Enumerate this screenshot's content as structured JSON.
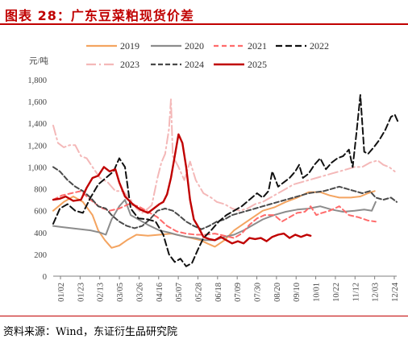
{
  "title": "图表 28：广东豆菜粕现货价差",
  "source": "资料来源：Wind，东证衍生品研究院",
  "chart_data": {
    "type": "line",
    "ylabel": "元/吨",
    "ylim": [
      0,
      1800
    ],
    "yticks": [
      "0",
      "200",
      "400",
      "600",
      "800",
      "1,000",
      "1,200",
      "1,400",
      "1,600",
      "1,800"
    ],
    "xticks": [
      "01/02",
      "01/23",
      "02/13",
      "03/05",
      "03/26",
      "04/16",
      "05/07",
      "05/28",
      "06/18",
      "07/09",
      "07/30",
      "08/20",
      "09/10",
      "10/01",
      "10/22",
      "11/12",
      "12/03",
      "12/24"
    ],
    "x_domain": [
      1,
      360
    ],
    "legend_position": "top",
    "series": [
      {
        "name": "2019",
        "color": "#f4a460",
        "dash": "solid",
        "points": [
          [
            1,
            600
          ],
          [
            12,
            680
          ],
          [
            22,
            730
          ],
          [
            32,
            680
          ],
          [
            42,
            560
          ],
          [
            48,
            420
          ],
          [
            55,
            330
          ],
          [
            62,
            260
          ],
          [
            70,
            280
          ],
          [
            78,
            330
          ],
          [
            88,
            380
          ],
          [
            100,
            370
          ],
          [
            112,
            380
          ],
          [
            125,
            390
          ],
          [
            140,
            360
          ],
          [
            155,
            330
          ],
          [
            162,
            300
          ],
          [
            170,
            270
          ],
          [
            180,
            330
          ],
          [
            190,
            420
          ],
          [
            200,
            480
          ],
          [
            210,
            540
          ],
          [
            220,
            600
          ],
          [
            232,
            630
          ],
          [
            244,
            680
          ],
          [
            256,
            720
          ],
          [
            268,
            770
          ],
          [
            280,
            770
          ],
          [
            290,
            740
          ],
          [
            300,
            720
          ],
          [
            312,
            720
          ],
          [
            322,
            730
          ],
          [
            330,
            760
          ],
          [
            337,
            780
          ]
        ]
      },
      {
        "name": "2020",
        "color": "#8c8c8c",
        "dash": "solid",
        "points": [
          [
            1,
            460
          ],
          [
            10,
            450
          ],
          [
            20,
            440
          ],
          [
            30,
            430
          ],
          [
            40,
            420
          ],
          [
            50,
            400
          ],
          [
            56,
            380
          ],
          [
            62,
            520
          ],
          [
            70,
            640
          ],
          [
            76,
            700
          ],
          [
            82,
            560
          ],
          [
            90,
            520
          ],
          [
            100,
            470
          ],
          [
            112,
            420
          ],
          [
            122,
            400
          ],
          [
            130,
            380
          ],
          [
            140,
            360
          ],
          [
            150,
            350
          ],
          [
            160,
            330
          ],
          [
            170,
            330
          ],
          [
            180,
            360
          ],
          [
            190,
            380
          ],
          [
            200,
            420
          ],
          [
            210,
            470
          ],
          [
            220,
            520
          ],
          [
            232,
            560
          ],
          [
            244,
            590
          ],
          [
            256,
            610
          ],
          [
            268,
            620
          ],
          [
            280,
            640
          ],
          [
            292,
            610
          ],
          [
            304,
            590
          ],
          [
            316,
            600
          ],
          [
            326,
            610
          ],
          [
            334,
            600
          ],
          [
            338,
            680
          ]
        ]
      },
      {
        "name": "2021",
        "color": "#ff6b6b",
        "dash": "6,4",
        "points": [
          [
            1,
            700
          ],
          [
            10,
            740
          ],
          [
            20,
            760
          ],
          [
            30,
            780
          ],
          [
            40,
            700
          ],
          [
            50,
            630
          ],
          [
            60,
            600
          ],
          [
            70,
            620
          ],
          [
            80,
            660
          ],
          [
            90,
            640
          ],
          [
            100,
            590
          ],
          [
            110,
            540
          ],
          [
            120,
            460
          ],
          [
            130,
            410
          ],
          [
            140,
            390
          ],
          [
            150,
            380
          ],
          [
            160,
            380
          ],
          [
            170,
            390
          ],
          [
            180,
            370
          ],
          [
            190,
            350
          ],
          [
            198,
            390
          ],
          [
            206,
            470
          ],
          [
            214,
            530
          ],
          [
            222,
            560
          ],
          [
            232,
            560
          ],
          [
            240,
            500
          ],
          [
            248,
            540
          ],
          [
            256,
            580
          ],
          [
            264,
            590
          ],
          [
            270,
            640
          ],
          [
            276,
            560
          ],
          [
            282,
            580
          ],
          [
            290,
            600
          ],
          [
            300,
            640
          ],
          [
            310,
            560
          ],
          [
            320,
            540
          ],
          [
            330,
            510
          ],
          [
            338,
            500
          ]
        ]
      },
      {
        "name": "2022",
        "color": "#111111",
        "dash": "8,4",
        "points": [
          [
            1,
            480
          ],
          [
            8,
            620
          ],
          [
            16,
            660
          ],
          [
            24,
            600
          ],
          [
            32,
            580
          ],
          [
            40,
            720
          ],
          [
            48,
            840
          ],
          [
            56,
            900
          ],
          [
            64,
            960
          ],
          [
            70,
            1080
          ],
          [
            76,
            1000
          ],
          [
            82,
            620
          ],
          [
            90,
            530
          ],
          [
            100,
            520
          ],
          [
            108,
            500
          ],
          [
            116,
            380
          ],
          [
            122,
            200
          ],
          [
            128,
            130
          ],
          [
            134,
            160
          ],
          [
            140,
            90
          ],
          [
            146,
            120
          ],
          [
            152,
            240
          ],
          [
            158,
            350
          ],
          [
            166,
            420
          ],
          [
            174,
            500
          ],
          [
            182,
            560
          ],
          [
            190,
            600
          ],
          [
            198,
            640
          ],
          [
            206,
            700
          ],
          [
            214,
            760
          ],
          [
            220,
            720
          ],
          [
            226,
            780
          ],
          [
            230,
            960
          ],
          [
            236,
            820
          ],
          [
            242,
            860
          ],
          [
            248,
            900
          ],
          [
            254,
            960
          ],
          [
            258,
            1020
          ],
          [
            262,
            900
          ],
          [
            268,
            940
          ],
          [
            274,
            1020
          ],
          [
            280,
            1080
          ],
          [
            286,
            980
          ],
          [
            292,
            1040
          ],
          [
            298,
            1080
          ],
          [
            304,
            1100
          ],
          [
            310,
            1160
          ],
          [
            314,
            1000
          ],
          [
            318,
            1320
          ],
          [
            322,
            1660
          ],
          [
            326,
            1140
          ],
          [
            330,
            1120
          ],
          [
            336,
            1180
          ],
          [
            342,
            1250
          ],
          [
            348,
            1340
          ],
          [
            354,
            1460
          ],
          [
            358,
            1480
          ],
          [
            362,
            1400
          ]
        ]
      },
      {
        "name": "2023",
        "color": "#f4b8b8",
        "dash": "12,4,2,4",
        "points": [
          [
            1,
            1380
          ],
          [
            6,
            1220
          ],
          [
            12,
            1180
          ],
          [
            18,
            1200
          ],
          [
            24,
            1200
          ],
          [
            30,
            1100
          ],
          [
            36,
            1080
          ],
          [
            42,
            1000
          ],
          [
            50,
            900
          ],
          [
            58,
            860
          ],
          [
            66,
            780
          ],
          [
            74,
            780
          ],
          [
            82,
            700
          ],
          [
            88,
            620
          ],
          [
            94,
            580
          ],
          [
            100,
            620
          ],
          [
            104,
            650
          ],
          [
            110,
            900
          ],
          [
            114,
            1040
          ],
          [
            118,
            1120
          ],
          [
            122,
            1350
          ],
          [
            124,
            1620
          ],
          [
            126,
            1100
          ],
          [
            132,
            1000
          ],
          [
            138,
            880
          ],
          [
            144,
            1050
          ],
          [
            150,
            880
          ],
          [
            158,
            760
          ],
          [
            166,
            720
          ],
          [
            172,
            680
          ],
          [
            180,
            660
          ],
          [
            188,
            620
          ],
          [
            196,
            600
          ],
          [
            204,
            620
          ],
          [
            212,
            660
          ],
          [
            220,
            680
          ],
          [
            228,
            720
          ],
          [
            236,
            760
          ],
          [
            244,
            800
          ],
          [
            252,
            840
          ],
          [
            260,
            860
          ],
          [
            268,
            880
          ],
          [
            276,
            900
          ],
          [
            284,
            920
          ],
          [
            292,
            940
          ],
          [
            300,
            960
          ],
          [
            308,
            980
          ],
          [
            316,
            1000
          ],
          [
            324,
            1000
          ],
          [
            332,
            1040
          ],
          [
            340,
            1060
          ],
          [
            346,
            1020
          ],
          [
            352,
            1000
          ],
          [
            358,
            960
          ]
        ]
      },
      {
        "name": "2024",
        "color": "#4a4a4a",
        "dash": "6,3",
        "points": [
          [
            1,
            1000
          ],
          [
            8,
            960
          ],
          [
            16,
            880
          ],
          [
            24,
            820
          ],
          [
            32,
            780
          ],
          [
            40,
            720
          ],
          [
            48,
            640
          ],
          [
            56,
            620
          ],
          [
            62,
            560
          ],
          [
            70,
            500
          ],
          [
            78,
            460
          ],
          [
            86,
            440
          ],
          [
            94,
            460
          ],
          [
            102,
            520
          ],
          [
            110,
            600
          ],
          [
            118,
            620
          ],
          [
            126,
            600
          ],
          [
            132,
            560
          ],
          [
            140,
            500
          ],
          [
            148,
            460
          ],
          [
            156,
            430
          ],
          [
            164,
            460
          ],
          [
            172,
            500
          ],
          [
            180,
            520
          ],
          [
            188,
            560
          ],
          [
            196,
            580
          ],
          [
            204,
            600
          ],
          [
            212,
            620
          ],
          [
            220,
            640
          ],
          [
            228,
            660
          ],
          [
            236,
            680
          ],
          [
            244,
            700
          ],
          [
            252,
            720
          ],
          [
            260,
            740
          ],
          [
            268,
            760
          ],
          [
            276,
            770
          ],
          [
            284,
            780
          ],
          [
            292,
            800
          ],
          [
            300,
            820
          ],
          [
            308,
            800
          ],
          [
            316,
            780
          ],
          [
            324,
            760
          ],
          [
            332,
            780
          ],
          [
            338,
            720
          ],
          [
            346,
            700
          ],
          [
            354,
            720
          ],
          [
            360,
            680
          ]
        ]
      },
      {
        "name": "2025",
        "color": "#c00000",
        "dash": "solid",
        "points": [
          [
            1,
            700
          ],
          [
            8,
            710
          ],
          [
            14,
            730
          ],
          [
            22,
            690
          ],
          [
            30,
            700
          ],
          [
            36,
            810
          ],
          [
            42,
            900
          ],
          [
            48,
            920
          ],
          [
            54,
            1000
          ],
          [
            60,
            960
          ],
          [
            66,
            980
          ],
          [
            70,
            860
          ],
          [
            76,
            730
          ],
          [
            84,
            660
          ],
          [
            92,
            610
          ],
          [
            100,
            580
          ],
          [
            106,
            620
          ],
          [
            112,
            660
          ],
          [
            116,
            680
          ],
          [
            120,
            750
          ],
          [
            124,
            900
          ],
          [
            128,
            1100
          ],
          [
            132,
            1300
          ],
          [
            136,
            1220
          ],
          [
            140,
            1000
          ],
          [
            144,
            700
          ],
          [
            148,
            520
          ],
          [
            152,
            460
          ],
          [
            158,
            360
          ],
          [
            164,
            340
          ],
          [
            170,
            330
          ],
          [
            176,
            360
          ],
          [
            182,
            330
          ],
          [
            188,
            300
          ],
          [
            194,
            320
          ],
          [
            200,
            300
          ],
          [
            206,
            350
          ],
          [
            212,
            340
          ],
          [
            218,
            350
          ],
          [
            224,
            320
          ],
          [
            230,
            360
          ],
          [
            236,
            380
          ],
          [
            242,
            390
          ],
          [
            248,
            350
          ],
          [
            254,
            380
          ],
          [
            260,
            360
          ],
          [
            266,
            380
          ],
          [
            270,
            370
          ]
        ]
      }
    ]
  }
}
